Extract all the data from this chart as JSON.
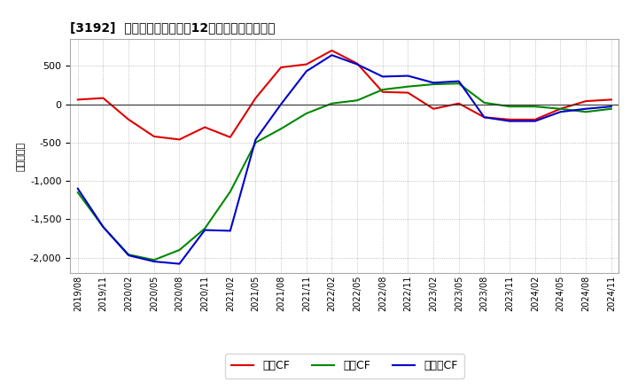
{
  "title": "[3192]  キャッシュフローの12か月移動合計の推移",
  "ylabel": "（百万円）",
  "background_color": "#ffffff",
  "grid_color": "#aaaaaa",
  "xtick_labels": [
    "2019/08",
    "2019/11",
    "2020/02",
    "2020/05",
    "2020/08",
    "2020/11",
    "2021/02",
    "2021/05",
    "2021/08",
    "2021/11",
    "2022/02",
    "2022/05",
    "2022/08",
    "2022/11",
    "2023/02",
    "2023/05",
    "2023/08",
    "2023/11",
    "2024/02",
    "2024/05",
    "2024/08",
    "2024/11"
  ],
  "operating_cf": [
    60,
    80,
    -200,
    -420,
    -460,
    -300,
    -430,
    80,
    480,
    520,
    700,
    530,
    160,
    150,
    -60,
    10,
    -170,
    -200,
    -200,
    -60,
    40,
    60
  ],
  "investing_cf": [
    -1150,
    -1600,
    -1960,
    -2030,
    -1900,
    -1620,
    -1140,
    -500,
    -320,
    -120,
    10,
    50,
    190,
    230,
    260,
    270,
    20,
    -30,
    -30,
    -60,
    -100,
    -60
  ],
  "free_cf": [
    -1100,
    -1600,
    -1970,
    -2050,
    -2080,
    -1640,
    -1650,
    -460,
    0,
    430,
    640,
    520,
    360,
    370,
    280,
    300,
    -170,
    -220,
    -220,
    -100,
    -60,
    -30
  ],
  "operating_color": "#dd0000",
  "investing_color": "#008800",
  "free_color": "#0000cc",
  "ylim": [
    -2200,
    850
  ],
  "yticks": [
    -2000,
    -1500,
    -1000,
    -500,
    0,
    500
  ],
  "legend_labels": [
    "営業CF",
    "投資CF",
    "フリーCF"
  ],
  "line_width": 1.5
}
